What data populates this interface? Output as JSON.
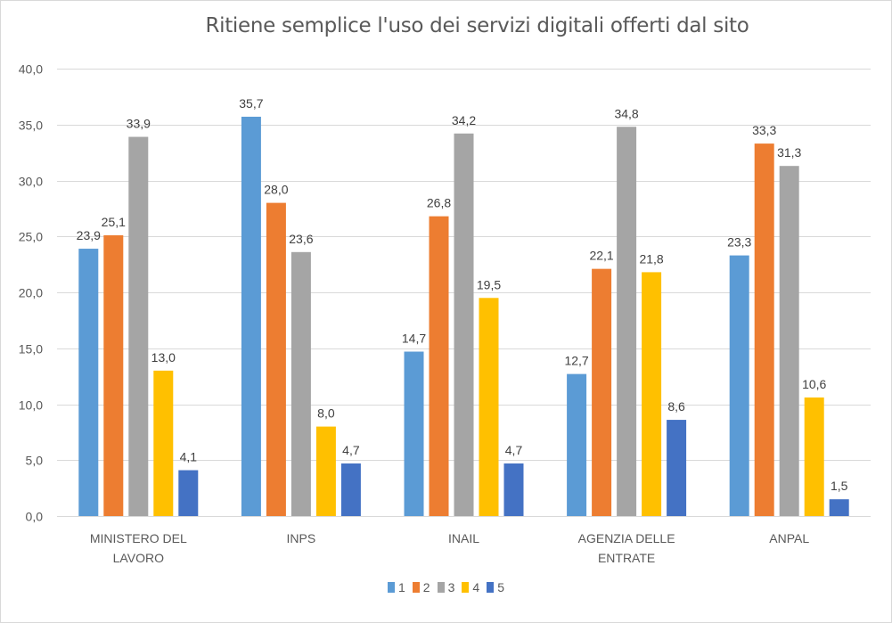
{
  "chart_data": {
    "type": "bar",
    "title": "Ritiene semplice l'uso dei servizi digitali offerti dal sito",
    "xlabel": "",
    "ylabel": "",
    "ylim": [
      0,
      40
    ],
    "yticks": [
      "0,0",
      "5,0",
      "10,0",
      "15,0",
      "20,0",
      "25,0",
      "30,0",
      "35,0",
      "40,0"
    ],
    "ytick_values": [
      0,
      5,
      10,
      15,
      20,
      25,
      30,
      35,
      40
    ],
    "grid": true,
    "legend_position": "bottom",
    "categories": [
      [
        "MINISTERO DEL",
        "LAVORO"
      ],
      [
        "INPS"
      ],
      [
        "INAIL"
      ],
      [
        "AGENZIA DELLE",
        "ENTRATE"
      ],
      [
        "ANPAL"
      ]
    ],
    "series": [
      {
        "name": "1",
        "color": "#5b9bd5",
        "values": [
          23.9,
          35.7,
          14.7,
          12.7,
          23.3
        ],
        "labels": [
          "23,9",
          "35,7",
          "14,7",
          "12,7",
          "23,3"
        ]
      },
      {
        "name": "2",
        "color": "#ed7d31",
        "values": [
          25.1,
          28.0,
          26.8,
          22.1,
          33.3
        ],
        "labels": [
          "25,1",
          "28,0",
          "26,8",
          "22,1",
          "33,3"
        ]
      },
      {
        "name": "3",
        "color": "#a5a5a5",
        "values": [
          33.9,
          23.6,
          34.2,
          34.8,
          31.3
        ],
        "labels": [
          "33,9",
          "23,6",
          "34,2",
          "34,8",
          "31,3"
        ]
      },
      {
        "name": "4",
        "color": "#ffc000",
        "values": [
          13.0,
          8.0,
          19.5,
          21.8,
          10.6
        ],
        "labels": [
          "13,0",
          "8,0",
          "19,5",
          "21,8",
          "10,6"
        ]
      },
      {
        "name": "5",
        "color": "#4472c4",
        "values": [
          4.1,
          4.7,
          4.7,
          8.6,
          1.5
        ],
        "labels": [
          "4,1",
          "4,7",
          "4,7",
          "8,6",
          "1,5"
        ]
      }
    ]
  }
}
